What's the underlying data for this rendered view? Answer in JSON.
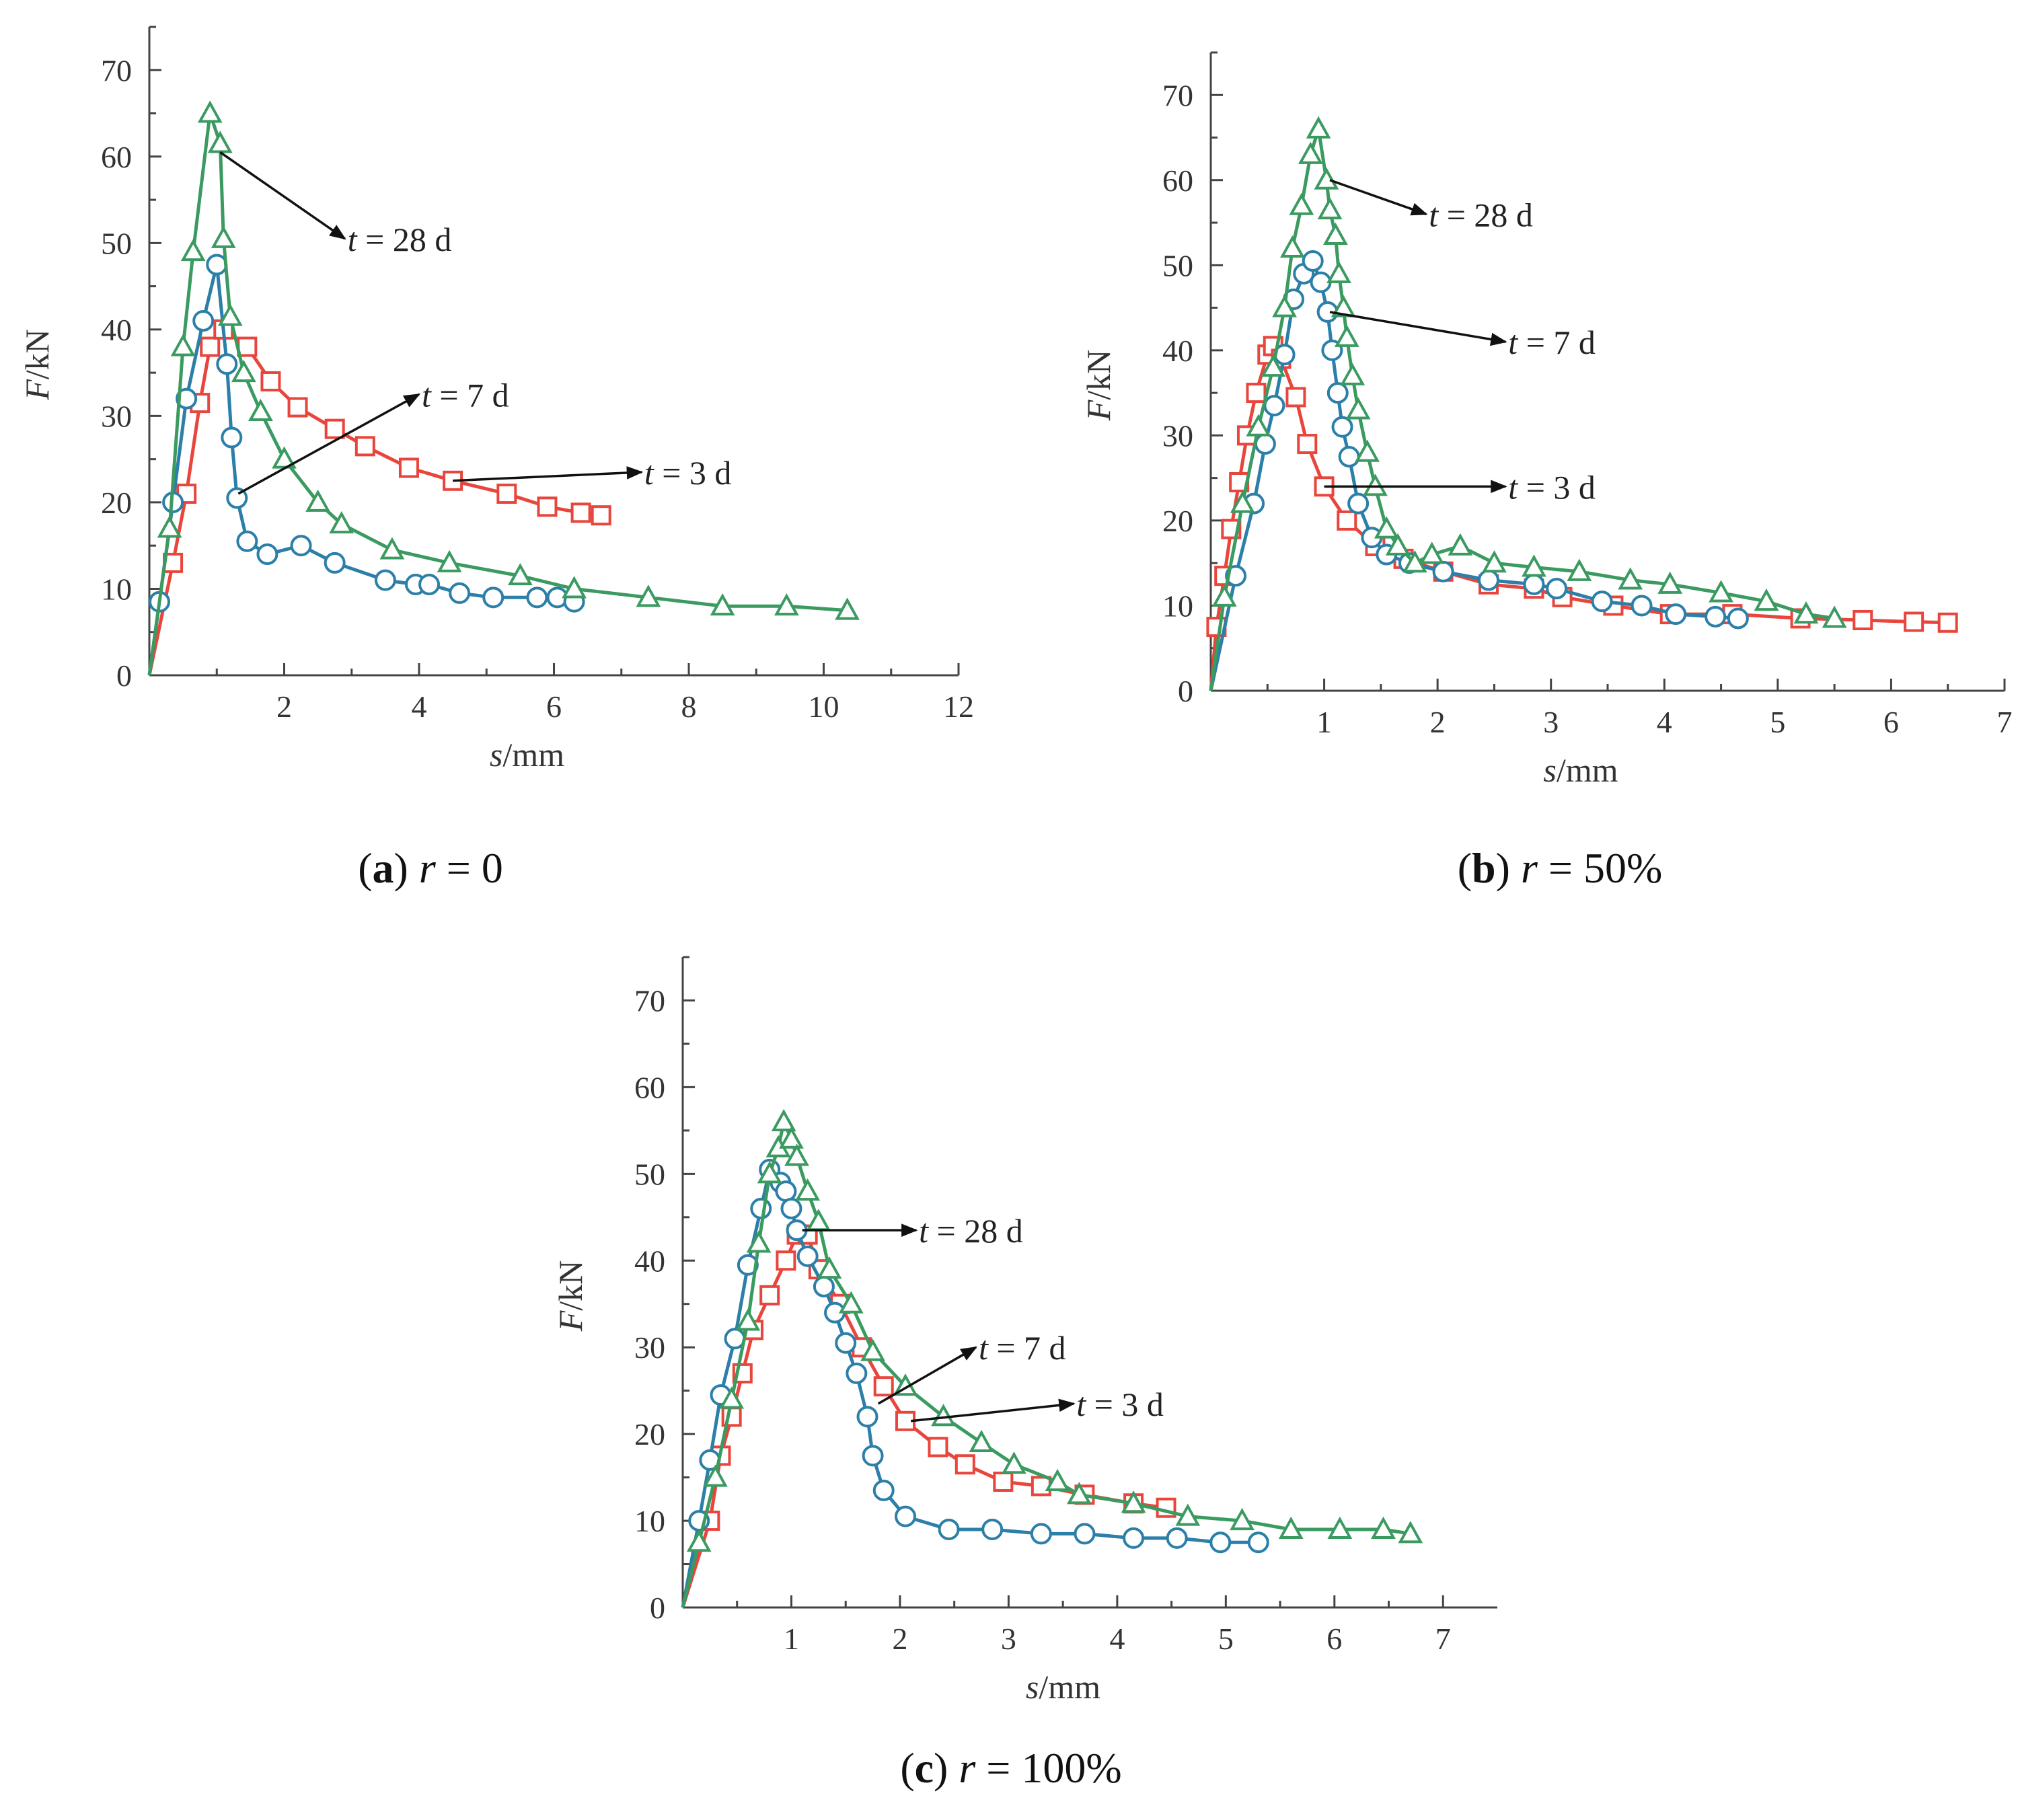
{
  "colors": {
    "t3": "#e8453c",
    "t7": "#2b7fa8",
    "t28": "#3a9a60",
    "axis": "#444444"
  },
  "chart_data": [
    {
      "id": "a",
      "type": "line",
      "title": "r = 0",
      "caption": {
        "letter": "a",
        "var": "r",
        "rest": " = 0"
      },
      "xlabel": {
        "var": "s",
        "unit": "/mm"
      },
      "ylabel": {
        "var": "F",
        "unit": "/kN"
      },
      "xlim": [
        0,
        12
      ],
      "ylim": [
        0,
        75
      ],
      "xticks": [
        2,
        4,
        6,
        8,
        10,
        12
      ],
      "yticks": [
        0,
        10,
        20,
        30,
        40,
        50,
        60,
        70
      ],
      "series": [
        {
          "name": "t = 3 d",
          "marker": "square",
          "color": "#e8453c",
          "x": [
            0,
            0.35,
            0.55,
            0.75,
            0.9,
            1.1,
            1.45,
            1.8,
            2.2,
            2.75,
            3.2,
            3.85,
            4.5,
            5.3,
            5.9,
            6.4,
            6.7
          ],
          "y": [
            0,
            13,
            21,
            31.5,
            38,
            40,
            38,
            34,
            31,
            28.5,
            26.5,
            24,
            22.5,
            21,
            19.5,
            18.8,
            18.5
          ]
        },
        {
          "name": "t = 7 d",
          "marker": "circle",
          "color": "#2b7fa8",
          "x": [
            0,
            0.15,
            0.35,
            0.55,
            0.8,
            1.0,
            1.15,
            1.22,
            1.3,
            1.45,
            1.75,
            2.25,
            2.75,
            3.5,
            3.95,
            4.15,
            4.6,
            5.1,
            5.75,
            6.05,
            6.3
          ],
          "y": [
            0,
            8.5,
            20,
            32,
            41,
            47.5,
            36,
            27.5,
            20.5,
            15.5,
            14,
            15,
            13,
            11,
            10.5,
            10.5,
            9.5,
            9,
            9,
            9,
            8.5
          ]
        },
        {
          "name": "t = 28 d",
          "marker": "triangle",
          "color": "#3a9a60",
          "x": [
            0,
            0.3,
            0.5,
            0.65,
            0.9,
            1.05,
            1.1,
            1.2,
            1.4,
            1.65,
            2.0,
            2.5,
            2.85,
            3.6,
            4.45,
            5.5,
            6.3,
            7.4,
            8.5,
            9.45,
            10.35
          ],
          "y": [
            0,
            17,
            38,
            49,
            65,
            61.5,
            50.5,
            41.5,
            35,
            30.5,
            25,
            20,
            17.5,
            14.5,
            13,
            11.5,
            10,
            9,
            8,
            8,
            7.5
          ]
        }
      ],
      "annotations": [
        {
          "var": "t",
          "rest": " = 28 d",
          "anchor": [
            1.05,
            60.5
          ],
          "head": [
            2.9,
            50.5
          ]
        },
        {
          "var": "t",
          "rest": " = 7 d",
          "anchor": [
            1.32,
            21
          ],
          "head": [
            4.0,
            32.5
          ]
        },
        {
          "var": "t",
          "rest": " = 3 d",
          "anchor": [
            4.5,
            22.5
          ],
          "head": [
            7.3,
            23.5
          ]
        }
      ]
    },
    {
      "id": "b",
      "type": "line",
      "title": "r = 50%",
      "caption": {
        "letter": "b",
        "var": "r",
        "rest": " = 50%"
      },
      "xlabel": {
        "var": "s",
        "unit": "/mm"
      },
      "ylabel": {
        "var": "F",
        "unit": "/kN"
      },
      "xlim": [
        0,
        7
      ],
      "ylim": [
        0,
        75
      ],
      "xticks": [
        1,
        2,
        3,
        4,
        5,
        6,
        7
      ],
      "yticks": [
        0,
        10,
        20,
        30,
        40,
        50,
        60,
        70
      ],
      "series": [
        {
          "name": "t = 3 d",
          "marker": "square",
          "color": "#e8453c",
          "x": [
            0,
            0.05,
            0.12,
            0.18,
            0.25,
            0.32,
            0.4,
            0.5,
            0.55,
            0.62,
            0.75,
            0.85,
            1.0,
            1.2,
            1.45,
            1.7,
            2.05,
            2.45,
            2.85,
            3.1,
            3.55,
            4.05,
            4.6,
            5.2,
            5.75,
            6.2,
            6.5
          ],
          "y": [
            0,
            7.5,
            13.5,
            19,
            24.5,
            30,
            35,
            39.5,
            40.5,
            39,
            34.5,
            29,
            24,
            20,
            17,
            15.5,
            14,
            12.5,
            12,
            11,
            10,
            9,
            9,
            8.5,
            8.3,
            8.1,
            8
          ]
        },
        {
          "name": "t = 7 d",
          "marker": "circle",
          "color": "#2b7fa8",
          "x": [
            0,
            0.22,
            0.38,
            0.48,
            0.56,
            0.65,
            0.73,
            0.82,
            0.9,
            0.97,
            1.03,
            1.07,
            1.12,
            1.16,
            1.22,
            1.3,
            1.42,
            1.55,
            1.75,
            2.05,
            2.45,
            2.85,
            3.05,
            3.45,
            3.8,
            4.1,
            4.45,
            4.65
          ],
          "y": [
            0,
            13.5,
            22,
            29,
            33.5,
            39.5,
            46,
            49,
            50.5,
            48,
            44.5,
            40,
            35,
            31,
            27.5,
            22,
            18,
            16,
            15,
            14,
            13,
            12.5,
            12,
            10.5,
            10,
            9,
            8.7,
            8.5
          ]
        },
        {
          "name": "t = 28 d",
          "marker": "triangle",
          "color": "#3a9a60",
          "x": [
            0,
            0.12,
            0.28,
            0.42,
            0.55,
            0.65,
            0.72,
            0.8,
            0.88,
            0.95,
            1.02,
            1.05,
            1.1,
            1.13,
            1.17,
            1.2,
            1.25,
            1.3,
            1.38,
            1.45,
            1.55,
            1.65,
            1.8,
            1.95,
            2.2,
            2.5,
            2.85,
            3.25,
            3.7,
            4.05,
            4.5,
            4.9,
            5.25,
            5.5
          ],
          "y": [
            0,
            11,
            22,
            31,
            38,
            45,
            52,
            57,
            63,
            66,
            60,
            56.5,
            53.5,
            49,
            45,
            41.5,
            37,
            33,
            28,
            24,
            19,
            17,
            15,
            16,
            17,
            15,
            14.5,
            14,
            13,
            12.5,
            11.5,
            10.5,
            9,
            8.5
          ]
        }
      ],
      "annotations": [
        {
          "var": "t",
          "rest": " = 28 d",
          "anchor": [
            1.05,
            60
          ],
          "head": [
            1.9,
            56
          ]
        },
        {
          "var": "t",
          "rest": " = 7 d",
          "anchor": [
            1.05,
            44.5
          ],
          "head": [
            2.6,
            41
          ]
        },
        {
          "var": "t",
          "rest": " = 3 d",
          "anchor": [
            1.0,
            24
          ],
          "head": [
            2.6,
            24
          ]
        }
      ]
    },
    {
      "id": "c",
      "type": "line",
      "title": "r = 100%",
      "caption": {
        "letter": "c",
        "var": "r",
        "rest": " = 100%"
      },
      "xlabel": {
        "var": "s",
        "unit": "/mm"
      },
      "ylabel": {
        "var": "F",
        "unit": "/kN"
      },
      "xlim": [
        0,
        7.5
      ],
      "ylim": [
        0,
        75
      ],
      "xticks": [
        1,
        2,
        3,
        4,
        5,
        6,
        7
      ],
      "yticks": [
        0,
        10,
        20,
        30,
        40,
        50,
        60,
        70
      ],
      "series": [
        {
          "name": "t = 3 d",
          "marker": "square",
          "color": "#e8453c",
          "x": [
            0,
            0.25,
            0.35,
            0.45,
            0.55,
            0.65,
            0.8,
            0.95,
            1.05,
            1.15,
            1.25,
            1.45,
            1.65,
            1.85,
            2.05,
            2.35,
            2.6,
            2.95,
            3.3,
            3.7,
            4.15,
            4.45
          ],
          "y": [
            0,
            10,
            17.5,
            22,
            27,
            32,
            36,
            40,
            43,
            43,
            39,
            35,
            30,
            25.5,
            21.5,
            18.5,
            16.5,
            14.5,
            14,
            13,
            12,
            11.5
          ]
        },
        {
          "name": "t = 7 d",
          "marker": "circle",
          "color": "#2b7fa8",
          "x": [
            0,
            0.15,
            0.25,
            0.35,
            0.48,
            0.6,
            0.72,
            0.8,
            0.9,
            0.95,
            1.0,
            1.05,
            1.15,
            1.3,
            1.4,
            1.5,
            1.6,
            1.7,
            1.75,
            1.85,
            2.05,
            2.45,
            2.85,
            3.3,
            3.7,
            4.15,
            4.55,
            4.95,
            5.3
          ],
          "y": [
            0,
            10,
            17,
            24.5,
            31,
            39.5,
            46,
            50.5,
            49,
            48,
            46,
            43.5,
            40.5,
            37,
            34,
            30.5,
            27,
            22,
            17.5,
            13.5,
            10.5,
            9,
            9,
            8.5,
            8.5,
            8,
            8,
            7.5,
            7.5
          ]
        },
        {
          "name": "t = 28 d",
          "marker": "triangle",
          "color": "#3a9a60",
          "x": [
            0,
            0.15,
            0.3,
            0.45,
            0.6,
            0.7,
            0.8,
            0.88,
            0.93,
            1.0,
            1.05,
            1.15,
            1.25,
            1.35,
            1.55,
            1.75,
            2.05,
            2.4,
            2.75,
            3.05,
            3.45,
            3.65,
            4.15,
            4.65,
            5.15,
            5.6,
            6.05,
            6.45,
            6.7
          ],
          "y": [
            0,
            7.5,
            15,
            24,
            33,
            42,
            50,
            53,
            56,
            54,
            52,
            48,
            44.5,
            39,
            35,
            29.5,
            25.5,
            22,
            19,
            16.5,
            14.5,
            13,
            12,
            10.5,
            10,
            9,
            9,
            9,
            8.5
          ]
        }
      ],
      "annotations": [
        {
          "var": "t",
          "rest": " = 28 d",
          "anchor": [
            1.1,
            43.5
          ],
          "head": [
            2.15,
            43.5
          ]
        },
        {
          "var": "t",
          "rest": " = 7 d",
          "anchor": [
            1.8,
            23.5
          ],
          "head": [
            2.7,
            30
          ]
        },
        {
          "var": "t",
          "rest": " = 3 d",
          "anchor": [
            2.1,
            21.5
          ],
          "head": [
            3.6,
            23.5
          ]
        }
      ]
    }
  ]
}
